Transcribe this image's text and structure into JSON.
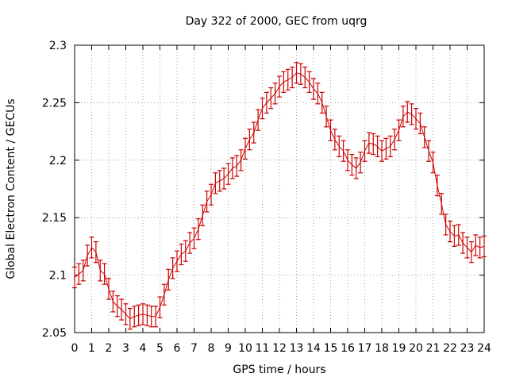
{
  "chart_data": {
    "type": "line",
    "title": "Day 322 of 2000, GEC from uqrg",
    "xlabel": "GPS time / hours",
    "ylabel": "Global Electron Content / GECUs",
    "xlim": [
      0,
      24
    ],
    "ylim": [
      2.05,
      2.3
    ],
    "grid": true,
    "colors": {
      "series": "#cc0000",
      "grid": "#a0a0a0",
      "frame": "#000000"
    },
    "x_ticks": [
      "0",
      "1",
      "2",
      "3",
      "4",
      "5",
      "6",
      "7",
      "8",
      "9",
      "10",
      "11",
      "12",
      "13",
      "14",
      "15",
      "16",
      "17",
      "18",
      "19",
      "20",
      "21",
      "22",
      "23",
      "24"
    ],
    "y_ticks": [
      {
        "value": 2.05,
        "label": "2.05"
      },
      {
        "value": 2.1,
        "label": "2.1"
      },
      {
        "value": 2.15,
        "label": "2.15"
      },
      {
        "value": 2.2,
        "label": "2.2"
      },
      {
        "value": 2.25,
        "label": "2.25"
      },
      {
        "value": 2.3,
        "label": "2.3"
      }
    ],
    "error": 0.009,
    "series": [
      {
        "name": "GEC",
        "x": [
          0,
          0.25,
          0.5,
          0.75,
          1,
          1.25,
          1.5,
          1.75,
          2,
          2.25,
          2.5,
          2.75,
          3,
          3.25,
          3.5,
          3.75,
          4,
          4.25,
          4.5,
          4.75,
          5,
          5.25,
          5.5,
          5.75,
          6,
          6.25,
          6.5,
          6.75,
          7,
          7.25,
          7.5,
          7.75,
          8,
          8.25,
          8.5,
          8.75,
          9,
          9.25,
          9.5,
          9.75,
          10,
          10.25,
          10.5,
          10.75,
          11,
          11.25,
          11.5,
          11.75,
          12,
          12.25,
          12.5,
          12.75,
          13,
          13.25,
          13.5,
          13.75,
          14,
          14.25,
          14.5,
          14.75,
          15,
          15.25,
          15.5,
          15.75,
          16,
          16.25,
          16.5,
          16.75,
          17,
          17.25,
          17.5,
          17.75,
          18,
          18.25,
          18.5,
          18.75,
          19,
          19.25,
          19.5,
          19.75,
          20,
          20.25,
          20.5,
          20.75,
          21,
          21.25,
          21.5,
          21.75,
          22,
          22.25,
          22.5,
          22.75,
          23,
          23.25,
          23.5,
          23.75,
          24
        ],
        "y": [
          2.098,
          2.101,
          2.104,
          2.117,
          2.124,
          2.12,
          2.104,
          2.101,
          2.088,
          2.077,
          2.073,
          2.07,
          2.066,
          2.062,
          2.064,
          2.065,
          2.066,
          2.065,
          2.064,
          2.064,
          2.072,
          2.083,
          2.096,
          2.106,
          2.112,
          2.118,
          2.121,
          2.128,
          2.132,
          2.14,
          2.152,
          2.164,
          2.17,
          2.18,
          2.182,
          2.184,
          2.188,
          2.193,
          2.195,
          2.2,
          2.21,
          2.218,
          2.224,
          2.235,
          2.245,
          2.25,
          2.254,
          2.258,
          2.264,
          2.268,
          2.27,
          2.272,
          2.276,
          2.275,
          2.272,
          2.268,
          2.262,
          2.258,
          2.25,
          2.238,
          2.226,
          2.218,
          2.212,
          2.208,
          2.2,
          2.196,
          2.193,
          2.198,
          2.208,
          2.215,
          2.214,
          2.212,
          2.208,
          2.21,
          2.212,
          2.218,
          2.226,
          2.238,
          2.242,
          2.24,
          2.236,
          2.232,
          2.22,
          2.208,
          2.198,
          2.178,
          2.162,
          2.144,
          2.138,
          2.134,
          2.135,
          2.128,
          2.124,
          2.12,
          2.126,
          2.124,
          2.125
        ]
      }
    ]
  }
}
